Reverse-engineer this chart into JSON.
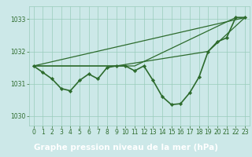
{
  "background_color": "#cce8e8",
  "grid_color": "#99ccbb",
  "line_color": "#2d6b2d",
  "marker_color": "#2d6b2d",
  "xlabel": "Graphe pression niveau de la mer (hPa)",
  "xlabel_bg": "#2d6b2d",
  "xlabel_fg": "#ffffff",
  "ylim": [
    1029.7,
    1033.4
  ],
  "xlim": [
    -0.5,
    23.5
  ],
  "yticks": [
    1030,
    1031,
    1032,
    1033
  ],
  "xticks": [
    0,
    1,
    2,
    3,
    4,
    5,
    6,
    7,
    8,
    9,
    10,
    11,
    12,
    13,
    14,
    15,
    16,
    17,
    18,
    19,
    20,
    21,
    22,
    23
  ],
  "series": [
    {
      "x": [
        0,
        1,
        2,
        3,
        4,
        5,
        6,
        7,
        8,
        9,
        10,
        11,
        12,
        13,
        14,
        15,
        16,
        17,
        18,
        19,
        20,
        21,
        22,
        23
      ],
      "y": [
        1031.55,
        1031.35,
        1031.15,
        1030.85,
        1030.78,
        1031.1,
        1031.3,
        1031.15,
        1031.5,
        1031.55,
        1031.55,
        1031.4,
        1031.55,
        1031.1,
        1030.6,
        1030.35,
        1030.38,
        1030.72,
        1031.2,
        1032.0,
        1032.3,
        1032.42,
        1033.05,
        1033.05
      ],
      "linewidth": 1.2
    },
    {
      "x": [
        0,
        23
      ],
      "y": [
        1031.55,
        1033.05
      ],
      "linewidth": 0.9
    },
    {
      "x": [
        0,
        11,
        22,
        23
      ],
      "y": [
        1031.55,
        1031.55,
        1033.05,
        1033.05
      ],
      "linewidth": 0.9
    },
    {
      "x": [
        0,
        9,
        19,
        23
      ],
      "y": [
        1031.55,
        1031.55,
        1032.0,
        1033.05
      ],
      "linewidth": 0.9
    }
  ],
  "tick_fontsize": 5.5,
  "xlabel_fontsize": 7.5
}
